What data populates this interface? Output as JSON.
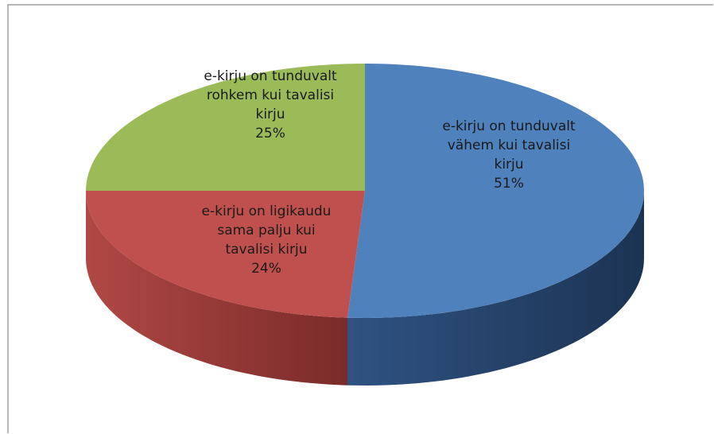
{
  "chart_data": {
    "type": "pie",
    "categories": [
      "e-kirju on tunduvalt vähem kui tavalisi kirju",
      "e-kirju on ligikaudu sama palju kui tavalisi kirju",
      "e-kirju on tunduvalt rohkem kui tavalisi kirju"
    ],
    "values": [
      51,
      24,
      25
    ],
    "value_labels": [
      "51%",
      "24%",
      "25%"
    ],
    "colors": [
      "#4f81bd",
      "#c0504d",
      "#9bbb59"
    ],
    "start_angle": 0,
    "direction": "clockwise",
    "three_d": true
  }
}
